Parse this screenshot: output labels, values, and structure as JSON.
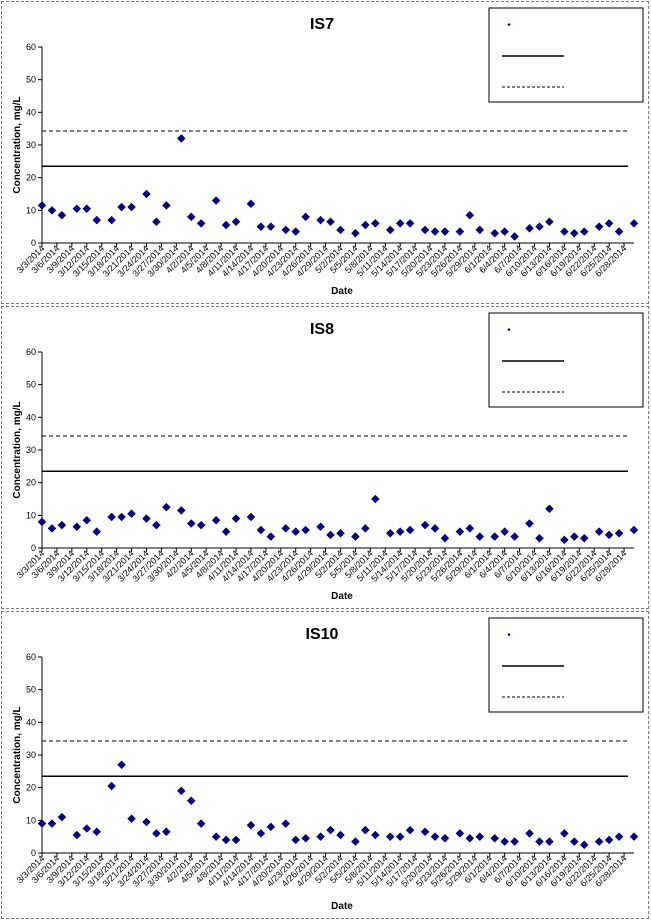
{
  "chart_data": [
    {
      "type": "scatter",
      "title": "IS7",
      "xlabel": "Date",
      "ylabel": "Concentration, mg/L",
      "ylim": [
        0,
        60
      ],
      "yticks": [
        0,
        10,
        20,
        30,
        40,
        50,
        60
      ],
      "x_tick_labels": [
        "3/3/2014",
        "3/6/2014",
        "3/9/2014",
        "3/12/2014",
        "3/15/2014",
        "3/18/2014",
        "3/21/2014",
        "3/24/2014",
        "3/27/2014",
        "3/30/2014",
        "4/2/2014",
        "4/5/2014",
        "4/8/2014",
        "4/11/2014",
        "4/14/2014",
        "4/17/2014",
        "4/20/2014",
        "4/23/2014",
        "4/26/2014",
        "4/29/2014",
        "5/2/2014",
        "5/5/2014",
        "5/8/2014",
        "5/11/2014",
        "5/14/2014",
        "5/17/2014",
        "5/20/2014",
        "5/23/2014",
        "5/26/2014",
        "5/29/2014",
        "6/1/2014",
        "6/4/2014",
        "6/7/2014",
        "6/10/2014",
        "6/13/2014",
        "6/16/2014",
        "6/19/2014",
        "6/22/2014",
        "6/25/2014",
        "6/28/2014"
      ],
      "x_range": [
        "3/3/2014",
        "6/30/2014"
      ],
      "legend_position": "top-right",
      "reference_lines": [
        {
          "style": "solid",
          "value": 23.5
        },
        {
          "style": "dashed",
          "value": 34.3
        }
      ],
      "series": [
        {
          "marker": "diamond",
          "x": [
            "3/3/2014",
            "3/5/2014",
            "3/7/2014",
            "3/10/2014",
            "3/12/2014",
            "3/14/2014",
            "3/17/2014",
            "3/19/2014",
            "3/21/2014",
            "3/24/2014",
            "3/26/2014",
            "3/28/2014",
            "3/31/2014",
            "4/2/2014",
            "4/4/2014",
            "4/7/2014",
            "4/9/2014",
            "4/11/2014",
            "4/14/2014",
            "4/16/2014",
            "4/18/2014",
            "4/21/2014",
            "4/23/2014",
            "4/25/2014",
            "4/28/2014",
            "4/30/2014",
            "5/2/2014",
            "5/5/2014",
            "5/7/2014",
            "5/9/2014",
            "5/12/2014",
            "5/14/2014",
            "5/16/2014",
            "5/19/2014",
            "5/21/2014",
            "5/23/2014",
            "5/26/2014",
            "5/28/2014",
            "5/30/2014",
            "6/2/2014",
            "6/4/2014",
            "6/6/2014",
            "6/9/2014",
            "6/11/2014",
            "6/13/2014",
            "6/16/2014",
            "6/18/2014",
            "6/20/2014",
            "6/23/2014",
            "6/25/2014",
            "6/27/2014",
            "6/30/2014"
          ],
          "y": [
            11.5,
            10.0,
            8.5,
            10.5,
            10.5,
            7.0,
            7.0,
            11.0,
            11.0,
            15.0,
            6.5,
            11.5,
            32.0,
            8.0,
            6.0,
            13.0,
            5.5,
            6.5,
            12.0,
            5.0,
            5.0,
            4.0,
            3.5,
            8.0,
            7.0,
            6.5,
            4.0,
            3.0,
            5.5,
            6.0,
            4.0,
            6.0,
            6.0,
            4.0,
            3.5,
            3.5,
            3.5,
            8.5,
            4.0,
            3.0,
            3.5,
            2.0,
            4.5,
            5.0,
            6.5,
            3.5,
            3.0,
            3.5,
            5.0,
            6.0,
            3.5,
            6.0
          ]
        }
      ]
    },
    {
      "type": "scatter",
      "title": "IS8",
      "xlabel": "Date",
      "ylabel": "Concentration, mg/L",
      "ylim": [
        0,
        60
      ],
      "yticks": [
        0,
        10,
        20,
        30,
        40,
        50,
        60
      ],
      "x_tick_labels": [
        "3/3/2014",
        "3/6/2014",
        "3/9/2014",
        "3/12/2014",
        "3/15/2014",
        "3/18/2014",
        "3/21/2014",
        "3/24/2014",
        "3/27/2014",
        "3/30/2014",
        "4/2/2014",
        "4/5/2014",
        "4/8/2014",
        "4/11/2014",
        "4/14/2014",
        "4/17/2014",
        "4/20/2014",
        "4/23/2014",
        "4/26/2014",
        "4/29/2014",
        "5/2/2014",
        "5/5/2014",
        "5/8/2014",
        "5/11/2014",
        "5/14/2014",
        "5/17/2014",
        "5/20/2014",
        "5/23/2014",
        "5/26/2014",
        "5/29/2014",
        "6/1/2014",
        "6/4/2014",
        "6/7/2014",
        "6/10/2014",
        "6/13/2014",
        "6/16/2014",
        "6/19/2014",
        "6/22/2014",
        "6/25/2014",
        "6/28/2014"
      ],
      "x_range": [
        "3/3/2014",
        "6/30/2014"
      ],
      "legend_position": "top-right",
      "reference_lines": [
        {
          "style": "solid",
          "value": 23.5
        },
        {
          "style": "dashed",
          "value": 34.3
        }
      ],
      "series": [
        {
          "marker": "diamond",
          "x": [
            "3/3/2014",
            "3/5/2014",
            "3/7/2014",
            "3/10/2014",
            "3/12/2014",
            "3/14/2014",
            "3/17/2014",
            "3/19/2014",
            "3/21/2014",
            "3/24/2014",
            "3/26/2014",
            "3/28/2014",
            "3/31/2014",
            "4/2/2014",
            "4/4/2014",
            "4/7/2014",
            "4/9/2014",
            "4/11/2014",
            "4/14/2014",
            "4/16/2014",
            "4/18/2014",
            "4/21/2014",
            "4/23/2014",
            "4/25/2014",
            "4/28/2014",
            "4/30/2014",
            "5/2/2014",
            "5/5/2014",
            "5/7/2014",
            "5/9/2014",
            "5/12/2014",
            "5/14/2014",
            "5/16/2014",
            "5/19/2014",
            "5/21/2014",
            "5/23/2014",
            "5/26/2014",
            "5/28/2014",
            "5/30/2014",
            "6/2/2014",
            "6/4/2014",
            "6/6/2014",
            "6/9/2014",
            "6/11/2014",
            "6/13/2014",
            "6/16/2014",
            "6/18/2014",
            "6/20/2014",
            "6/23/2014",
            "6/25/2014",
            "6/27/2014",
            "6/30/2014"
          ],
          "y": [
            8.0,
            6.0,
            7.0,
            6.5,
            8.5,
            5.0,
            9.5,
            9.5,
            10.5,
            9.0,
            7.0,
            12.5,
            11.5,
            7.5,
            7.0,
            8.5,
            5.0,
            9.0,
            9.5,
            5.5,
            3.5,
            6.0,
            5.0,
            5.5,
            6.5,
            4.0,
            4.5,
            3.5,
            6.0,
            15.0,
            4.5,
            5.0,
            5.5,
            7.0,
            6.0,
            3.0,
            5.0,
            6.0,
            3.5,
            3.5,
            5.0,
            3.5,
            7.5,
            3.0,
            12.0,
            2.5,
            3.5,
            3.0,
            5.0,
            4.0,
            4.5,
            5.5
          ]
        }
      ]
    },
    {
      "type": "scatter",
      "title": "IS10",
      "xlabel": "Date",
      "ylabel": "Concentration, mg/L",
      "ylim": [
        0,
        60
      ],
      "yticks": [
        0,
        10,
        20,
        30,
        40,
        50,
        60
      ],
      "x_tick_labels": [
        "3/3/2014",
        "3/6/2014",
        "3/9/2014",
        "3/12/2014",
        "3/15/2014",
        "3/18/2014",
        "3/21/2014",
        "3/24/2014",
        "3/27/2014",
        "3/30/2014",
        "4/2/2014",
        "4/5/2014",
        "4/8/2014",
        "4/11/2014",
        "4/14/2014",
        "4/17/2014",
        "4/20/2014",
        "4/23/2014",
        "4/26/2014",
        "4/29/2014",
        "5/2/2014",
        "5/5/2014",
        "5/8/2014",
        "5/11/2014",
        "5/14/2014",
        "5/17/2014",
        "5/20/2014",
        "5/23/2014",
        "5/26/2014",
        "5/29/2014",
        "6/1/2014",
        "6/4/2014",
        "6/7/2014",
        "6/10/2014",
        "6/13/2014",
        "6/16/2014",
        "6/19/2014",
        "6/22/2014",
        "6/25/2014",
        "6/28/2014"
      ],
      "x_range": [
        "3/3/2014",
        "6/30/2014"
      ],
      "legend_position": "top-right",
      "reference_lines": [
        {
          "style": "solid",
          "value": 23.5
        },
        {
          "style": "dashed",
          "value": 34.3
        }
      ],
      "series": [
        {
          "marker": "diamond",
          "x": [
            "3/3/2014",
            "3/5/2014",
            "3/7/2014",
            "3/10/2014",
            "3/12/2014",
            "3/14/2014",
            "3/17/2014",
            "3/19/2014",
            "3/21/2014",
            "3/24/2014",
            "3/26/2014",
            "3/28/2014",
            "3/31/2014",
            "4/2/2014",
            "4/4/2014",
            "4/7/2014",
            "4/9/2014",
            "4/11/2014",
            "4/14/2014",
            "4/16/2014",
            "4/18/2014",
            "4/21/2014",
            "4/23/2014",
            "4/25/2014",
            "4/28/2014",
            "4/30/2014",
            "5/2/2014",
            "5/5/2014",
            "5/7/2014",
            "5/9/2014",
            "5/12/2014",
            "5/14/2014",
            "5/16/2014",
            "5/19/2014",
            "5/21/2014",
            "5/23/2014",
            "5/26/2014",
            "5/28/2014",
            "5/30/2014",
            "6/2/2014",
            "6/4/2014",
            "6/6/2014",
            "6/9/2014",
            "6/11/2014",
            "6/13/2014",
            "6/16/2014",
            "6/18/2014",
            "6/20/2014",
            "6/23/2014",
            "6/25/2014",
            "6/27/2014",
            "6/30/2014"
          ],
          "y": [
            9.0,
            9.0,
            11.0,
            5.5,
            7.5,
            6.5,
            20.5,
            27.0,
            10.5,
            9.5,
            6.0,
            6.5,
            19.0,
            16.0,
            9.0,
            5.0,
            4.0,
            4.0,
            8.5,
            6.0,
            8.0,
            9.0,
            4.0,
            4.5,
            5.0,
            7.0,
            5.5,
            3.5,
            7.0,
            5.5,
            5.0,
            5.0,
            7.0,
            6.5,
            5.0,
            4.5,
            6.0,
            4.5,
            5.0,
            4.5,
            3.5,
            3.5,
            6.0,
            3.5,
            3.5,
            6.0,
            3.5,
            2.5,
            3.5,
            4.0,
            5.0,
            5.0
          ]
        }
      ]
    }
  ]
}
